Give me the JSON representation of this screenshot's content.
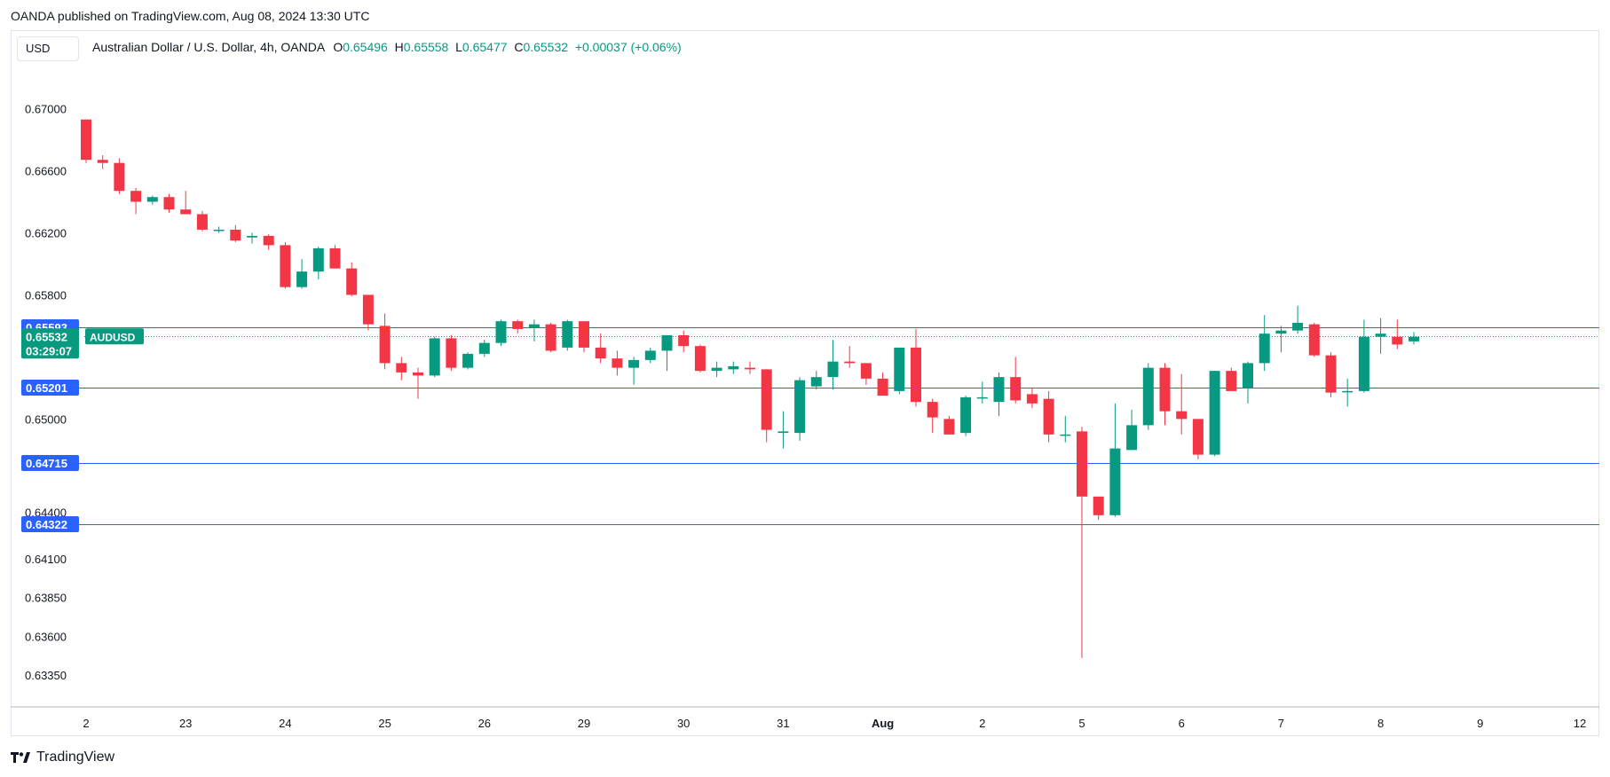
{
  "header": {
    "published": "OANDA published on TradingView.com, Aug 08, 2024 13:30 UTC",
    "currency": "USD"
  },
  "legend": {
    "title": "Australian Dollar / U.S. Dollar, 4h, OANDA",
    "o_label": "O",
    "o_value": "0.65496",
    "h_label": "H",
    "h_value": "0.65558",
    "l_label": "L",
    "l_value": "0.65477",
    "c_label": "C",
    "c_value": "0.65532",
    "change": "+0.00037 (+0.06%)"
  },
  "brand": {
    "name": "TradingView"
  },
  "colors": {
    "up": "#089981",
    "down": "#f23645",
    "level": "#2962ff",
    "tag": "#2962ff"
  },
  "price_tag": {
    "price": "0.65532",
    "countdown": "03:29:07",
    "symbol": "AUDUSD"
  },
  "chart_data": {
    "type": "candlestick",
    "ylim": [
      0.6315,
      0.6722
    ],
    "y_ticks": [
      "0.67000",
      "0.66600",
      "0.66200",
      "0.65800",
      "0.65000",
      "0.64400",
      "0.64100",
      "0.63850",
      "0.63600",
      "0.63350"
    ],
    "x_ticks": [
      {
        "label": "2",
        "i": 0
      },
      {
        "label": "23",
        "i": 6
      },
      {
        "label": "24",
        "i": 12
      },
      {
        "label": "25",
        "i": 18
      },
      {
        "label": "26",
        "i": 24
      },
      {
        "label": "29",
        "i": 30
      },
      {
        "label": "30",
        "i": 36
      },
      {
        "label": "31",
        "i": 42
      },
      {
        "label": "Aug",
        "i": 48
      },
      {
        "label": "2",
        "i": 54
      },
      {
        "label": "5",
        "i": 60
      },
      {
        "label": "6",
        "i": 66
      },
      {
        "label": "7",
        "i": 72
      },
      {
        "label": "8",
        "i": 78
      },
      {
        "label": "9",
        "i": 84
      },
      {
        "label": "12",
        "i": 90
      }
    ],
    "levels": [
      "0.65593",
      "0.65201",
      "0.64715",
      "0.64322"
    ],
    "candles": [
      [
        0.6693,
        0.6693,
        0.6665,
        0.6667
      ],
      [
        0.6667,
        0.667,
        0.6661,
        0.6665
      ],
      [
        0.6665,
        0.6668,
        0.6645,
        0.6647
      ],
      [
        0.6647,
        0.6649,
        0.6632,
        0.664
      ],
      [
        0.664,
        0.6644,
        0.6638,
        0.6643
      ],
      [
        0.6643,
        0.6645,
        0.6633,
        0.6635
      ],
      [
        0.6635,
        0.6647,
        0.6632,
        0.6632
      ],
      [
        0.6632,
        0.6634,
        0.6621,
        0.6622
      ],
      [
        0.6622,
        0.6624,
        0.662,
        0.6622
      ],
      [
        0.6622,
        0.6625,
        0.6614,
        0.6615
      ],
      [
        0.6617,
        0.662,
        0.6613,
        0.6618
      ],
      [
        0.6618,
        0.6619,
        0.6609,
        0.6612
      ],
      [
        0.6612,
        0.6614,
        0.6584,
        0.6585
      ],
      [
        0.6585,
        0.6603,
        0.6584,
        0.6595
      ],
      [
        0.6595,
        0.6611,
        0.659,
        0.661
      ],
      [
        0.661,
        0.6612,
        0.6597,
        0.6597
      ],
      [
        0.6597,
        0.6601,
        0.6579,
        0.658
      ],
      [
        0.658,
        0.658,
        0.6557,
        0.6561
      ],
      [
        0.656,
        0.6568,
        0.6532,
        0.6536
      ],
      [
        0.6536,
        0.654,
        0.6525,
        0.653
      ],
      [
        0.653,
        0.6533,
        0.6513,
        0.6528
      ],
      [
        0.6528,
        0.6553,
        0.6527,
        0.6552
      ],
      [
        0.6552,
        0.6554,
        0.6531,
        0.6533
      ],
      [
        0.6533,
        0.6543,
        0.6532,
        0.6542
      ],
      [
        0.6542,
        0.6551,
        0.654,
        0.6549
      ],
      [
        0.6549,
        0.6564,
        0.6547,
        0.6563
      ],
      [
        0.6563,
        0.6564,
        0.6555,
        0.6558
      ],
      [
        0.6559,
        0.6564,
        0.655,
        0.6561
      ],
      [
        0.6561,
        0.6562,
        0.6543,
        0.6544
      ],
      [
        0.6546,
        0.6564,
        0.6544,
        0.6563
      ],
      [
        0.6563,
        0.6563,
        0.6543,
        0.6546
      ],
      [
        0.6546,
        0.6555,
        0.6536,
        0.6539
      ],
      [
        0.6539,
        0.6544,
        0.6528,
        0.6533
      ],
      [
        0.6533,
        0.654,
        0.6522,
        0.6538
      ],
      [
        0.6538,
        0.6546,
        0.6536,
        0.6544
      ],
      [
        0.6544,
        0.6554,
        0.6531,
        0.6554
      ],
      [
        0.6554,
        0.6557,
        0.6543,
        0.6547
      ],
      [
        0.6547,
        0.6548,
        0.653,
        0.6531
      ],
      [
        0.6531,
        0.6537,
        0.6527,
        0.6533
      ],
      [
        0.6532,
        0.6537,
        0.6529,
        0.6534
      ],
      [
        0.6533,
        0.6537,
        0.6529,
        0.6532
      ],
      [
        0.6532,
        0.6532,
        0.6485,
        0.6493
      ],
      [
        0.6491,
        0.6505,
        0.6481,
        0.6492
      ],
      [
        0.6491,
        0.6527,
        0.6486,
        0.6525
      ],
      [
        0.6521,
        0.6531,
        0.6519,
        0.6527
      ],
      [
        0.6527,
        0.6551,
        0.6519,
        0.6537
      ],
      [
        0.6537,
        0.6547,
        0.6533,
        0.6536
      ],
      [
        0.6536,
        0.6536,
        0.6522,
        0.6526
      ],
      [
        0.6526,
        0.653,
        0.6516,
        0.6515
      ],
      [
        0.6518,
        0.6546,
        0.6516,
        0.6546
      ],
      [
        0.6546,
        0.6558,
        0.6508,
        0.6511
      ],
      [
        0.6511,
        0.6513,
        0.6491,
        0.6501
      ],
      [
        0.65,
        0.6502,
        0.649,
        0.649
      ],
      [
        0.6491,
        0.6515,
        0.6489,
        0.6514
      ],
      [
        0.6514,
        0.6524,
        0.651,
        0.6514
      ],
      [
        0.6511,
        0.653,
        0.6502,
        0.6527
      ],
      [
        0.6527,
        0.654,
        0.651,
        0.6512
      ],
      [
        0.6516,
        0.652,
        0.6507,
        0.651
      ],
      [
        0.6513,
        0.6518,
        0.6485,
        0.649
      ],
      [
        0.649,
        0.6502,
        0.6485,
        0.649
      ],
      [
        0.6492,
        0.6495,
        0.6346,
        0.645
      ],
      [
        0.645,
        0.645,
        0.6435,
        0.6438
      ],
      [
        0.6438,
        0.651,
        0.6437,
        0.6481
      ],
      [
        0.648,
        0.6506,
        0.648,
        0.6496
      ],
      [
        0.6496,
        0.6536,
        0.6493,
        0.6533
      ],
      [
        0.6533,
        0.6536,
        0.6496,
        0.6505
      ],
      [
        0.6505,
        0.6529,
        0.649,
        0.65
      ],
      [
        0.65,
        0.65,
        0.6474,
        0.6477
      ],
      [
        0.6477,
        0.6531,
        0.6476,
        0.6531
      ],
      [
        0.6531,
        0.6533,
        0.6518,
        0.6518
      ],
      [
        0.652,
        0.6537,
        0.651,
        0.6536
      ],
      [
        0.6536,
        0.6567,
        0.6531,
        0.6555
      ],
      [
        0.6555,
        0.656,
        0.6543,
        0.6557
      ],
      [
        0.6557,
        0.6573,
        0.6555,
        0.6562
      ],
      [
        0.6561,
        0.6562,
        0.654,
        0.6541
      ],
      [
        0.6541,
        0.6543,
        0.6514,
        0.6517
      ],
      [
        0.6518,
        0.6526,
        0.6508,
        0.6518
      ],
      [
        0.6518,
        0.6564,
        0.6517,
        0.6553
      ],
      [
        0.6553,
        0.6565,
        0.6542,
        0.6555
      ],
      [
        0.6553,
        0.6564,
        0.6545,
        0.6548
      ],
      [
        0.655,
        0.6556,
        0.6548,
        0.6553
      ]
    ]
  }
}
